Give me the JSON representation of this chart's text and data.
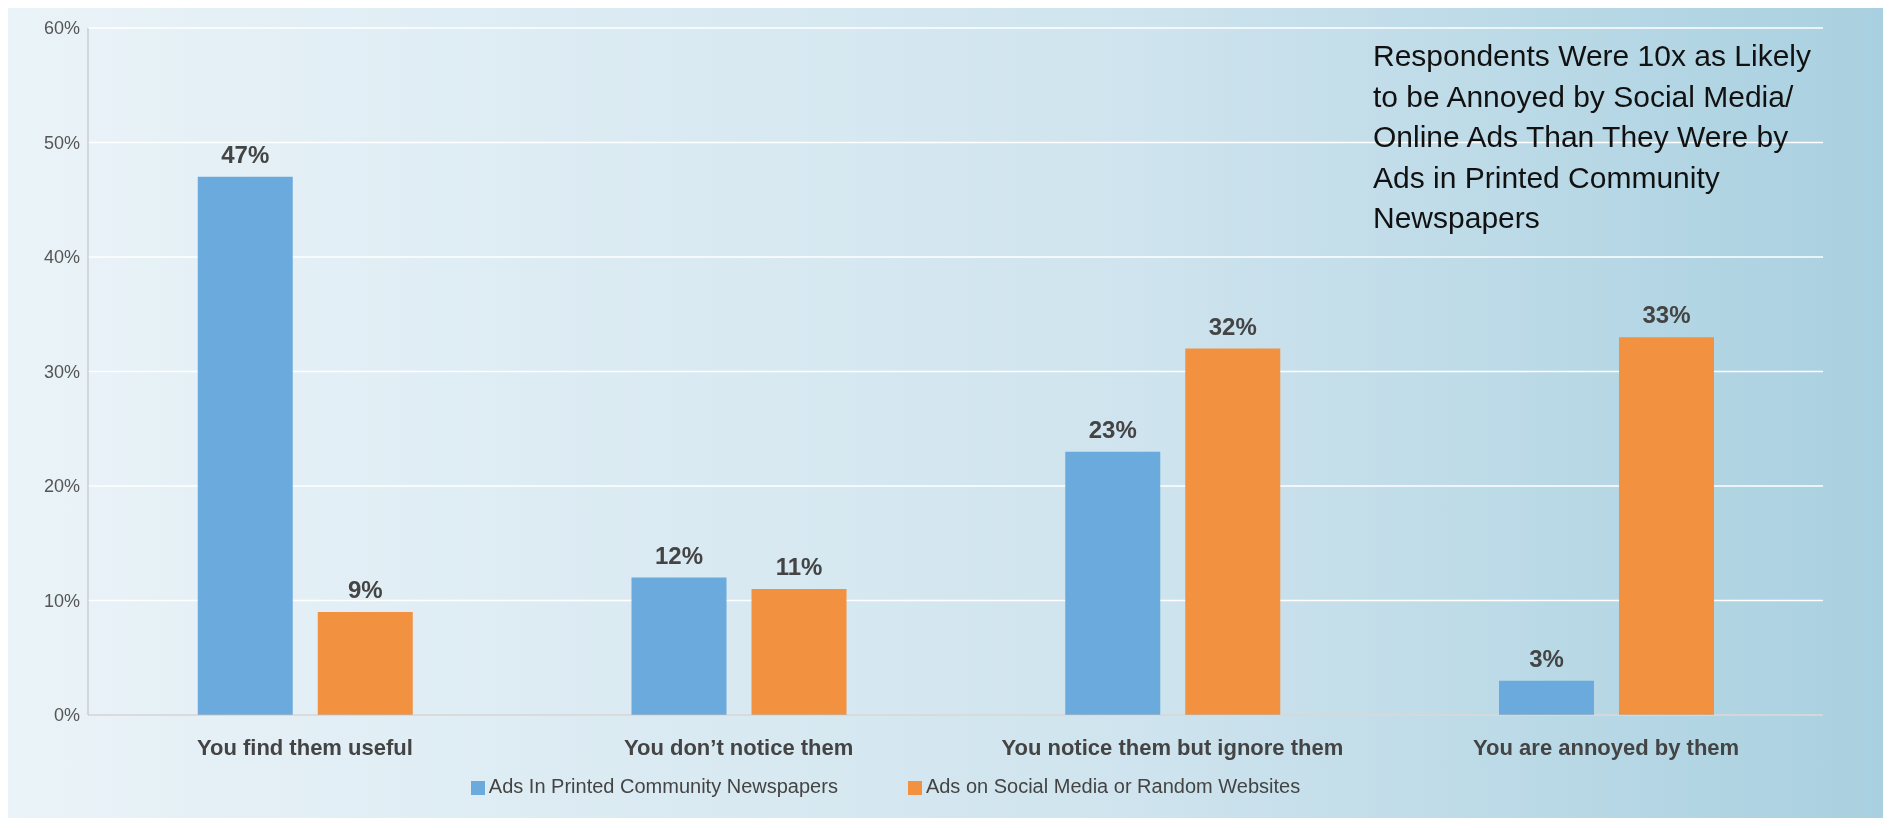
{
  "chart_data": {
    "type": "bar",
    "categories": [
      "You find them useful",
      "You don’t notice them",
      "You notice them but ignore them",
      "You are annoyed by them"
    ],
    "series": [
      {
        "name": "Ads In Printed Community Newspapers",
        "color": "#6aaadc",
        "values": [
          47,
          12,
          23,
          3
        ],
        "value_labels": [
          "47%",
          "12%",
          "23%",
          "3%"
        ]
      },
      {
        "name": "Ads on Social Media or Random Websites",
        "color": "#f29140",
        "values": [
          9,
          11,
          32,
          33
        ],
        "value_labels": [
          "9%",
          "11%",
          "32%",
          "33%"
        ]
      }
    ],
    "ylim": [
      0,
      60
    ],
    "yticks": [
      {
        "value": 0,
        "label": "0%"
      },
      {
        "value": 10,
        "label": "10%"
      },
      {
        "value": 20,
        "label": "20%"
      },
      {
        "value": 30,
        "label": "30%"
      },
      {
        "value": 40,
        "label": "40%"
      },
      {
        "value": 50,
        "label": "50%"
      },
      {
        "value": 60,
        "label": "60%"
      }
    ],
    "grid": "y",
    "legend": "bottom",
    "annotations": [
      "Respondents Were 10x as Likely to be Annoyed by Social Media/ Online Ads Than They Were by Ads in Printed Community Newspapers"
    ]
  }
}
